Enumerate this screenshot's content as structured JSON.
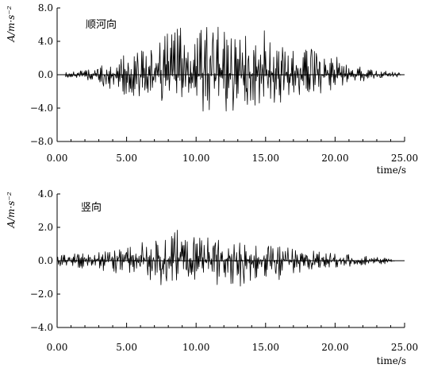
{
  "chart_data": [
    {
      "type": "line",
      "annotation": "顺河向",
      "ylabel": "A/m·s⁻²",
      "xlabel": "time/s",
      "xlim": [
        0,
        25
      ],
      "ylim": [
        -8,
        8
      ],
      "xticks": [
        "0.00",
        "5.00",
        "10.00",
        "15.00",
        "20.00",
        "25.00"
      ],
      "yticks": [
        "8.0",
        "4.0",
        "0.0",
        "−4.0",
        "−8.0"
      ],
      "grid": false,
      "envelope": {
        "t": [
          0.6,
          1.5,
          2.5,
          3.5,
          4.0,
          5.0,
          6.0,
          7.0,
          7.5,
          8.5,
          9.5,
          10.5,
          11.2,
          12.0,
          13.0,
          14.0,
          15.0,
          16.0,
          17.0,
          18.0,
          19.0,
          20.0,
          21.0,
          22.0,
          23.0,
          24.0,
          24.8
        ],
        "pos": [
          0.3,
          0.4,
          0.8,
          1.2,
          3.0,
          2.5,
          3.5,
          4.0,
          5.0,
          5.5,
          6.8,
          5.8,
          5.5,
          6.0,
          5.2,
          6.2,
          5.5,
          4.8,
          4.2,
          3.5,
          2.8,
          2.2,
          1.5,
          0.8,
          0.5,
          0.4,
          0.2
        ],
        "neg": [
          0.3,
          0.4,
          0.8,
          1.5,
          1.8,
          2.5,
          3.0,
          3.5,
          4.0,
          4.5,
          4.5,
          4.8,
          5.0,
          4.5,
          4.5,
          4.0,
          3.8,
          3.5,
          3.0,
          2.5,
          2.2,
          1.8,
          1.0,
          0.8,
          0.5,
          0.4,
          0.2
        ]
      }
    },
    {
      "type": "line",
      "annotation": "竖向",
      "ylabel": "A/m·s⁻²",
      "xlabel": "time/s",
      "xlim": [
        0,
        25
      ],
      "ylim": [
        -4,
        4
      ],
      "xticks": [
        "0.00",
        "5.00",
        "10.00",
        "15.00",
        "20.00",
        "25.00"
      ],
      "yticks": [
        "4.0",
        "2.0",
        "0.0",
        "−2.0",
        "−4.0"
      ],
      "grid": false,
      "envelope": {
        "t": [
          0.0,
          1.0,
          2.0,
          3.0,
          4.0,
          5.0,
          6.0,
          7.0,
          8.0,
          8.8,
          9.5,
          10.5,
          11.5,
          12.5,
          13.5,
          14.5,
          15.5,
          16.5,
          17.5,
          18.5,
          19.5,
          20.5,
          21.5,
          22.5,
          23.5,
          24.3
        ],
        "pos": [
          0.3,
          0.4,
          0.5,
          0.5,
          0.6,
          0.9,
          1.2,
          1.3,
          1.6,
          2.2,
          1.5,
          1.7,
          1.4,
          1.2,
          1.0,
          1.1,
          1.0,
          0.8,
          0.7,
          0.6,
          0.5,
          0.4,
          0.35,
          0.3,
          0.2,
          0.1
        ],
        "neg": [
          0.3,
          0.4,
          0.5,
          0.6,
          0.7,
          1.0,
          1.2,
          1.3,
          1.8,
          1.5,
          1.2,
          1.3,
          1.5,
          1.6,
          1.5,
          1.2,
          1.4,
          0.9,
          0.7,
          0.6,
          0.5,
          0.4,
          0.3,
          0.3,
          0.2,
          0.1
        ]
      }
    }
  ]
}
